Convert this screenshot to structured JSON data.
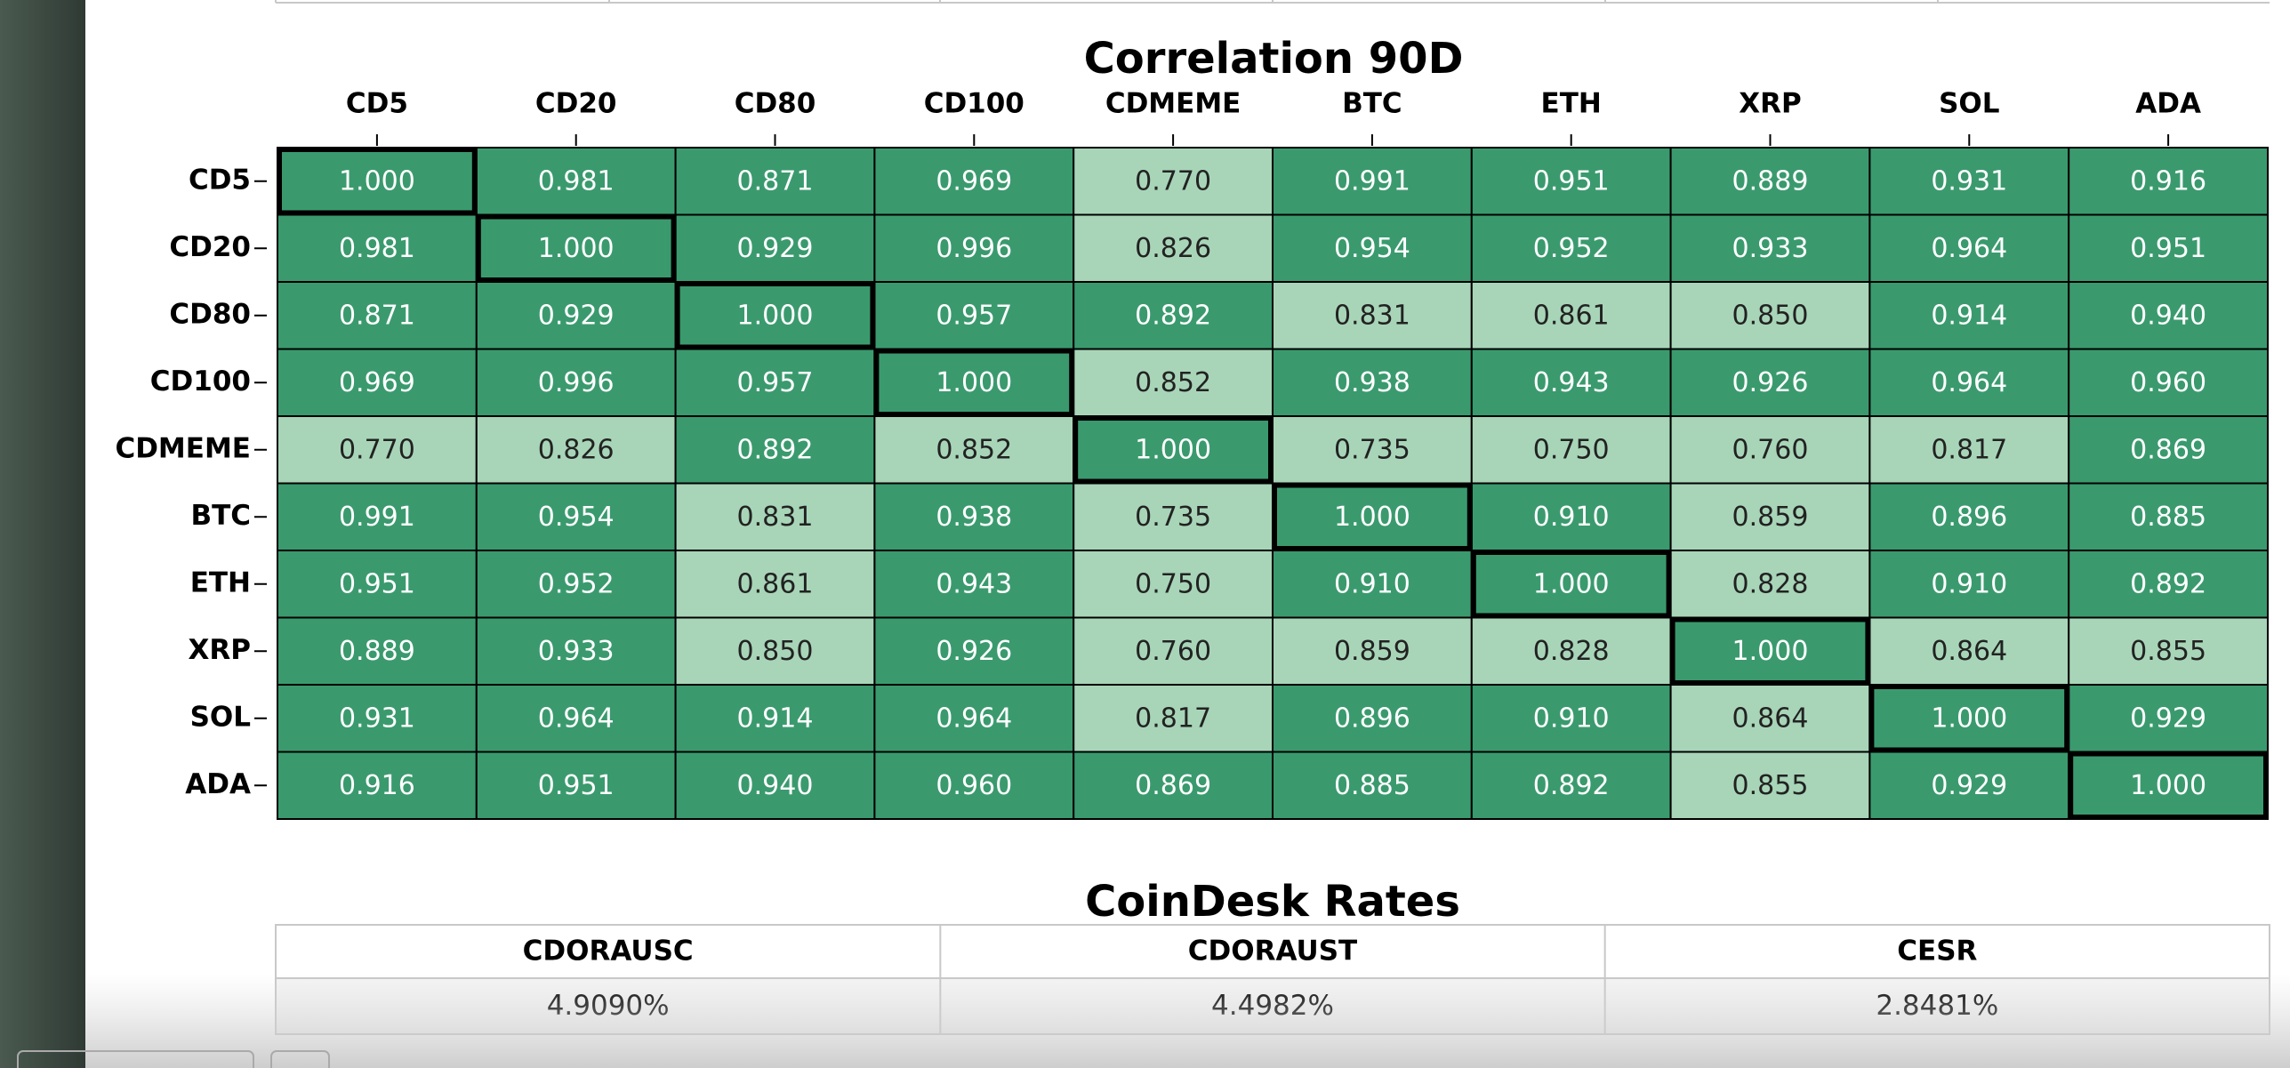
{
  "chart_data": {
    "type": "heatmap",
    "title": "Correlation 90D",
    "categories": [
      "CD5",
      "CD20",
      "CD80",
      "CD100",
      "CDMEME",
      "BTC",
      "ETH",
      "XRP",
      "SOL",
      "ADA"
    ],
    "values": [
      [
        1.0,
        0.981,
        0.871,
        0.969,
        0.77,
        0.991,
        0.951,
        0.889,
        0.931,
        0.916
      ],
      [
        0.981,
        1.0,
        0.929,
        0.996,
        0.826,
        0.954,
        0.952,
        0.933,
        0.964,
        0.951
      ],
      [
        0.871,
        0.929,
        1.0,
        0.957,
        0.892,
        0.831,
        0.861,
        0.85,
        0.914,
        0.94
      ],
      [
        0.969,
        0.996,
        0.957,
        1.0,
        0.852,
        0.938,
        0.943,
        0.926,
        0.964,
        0.96
      ],
      [
        0.77,
        0.826,
        0.892,
        0.852,
        1.0,
        0.735,
        0.75,
        0.76,
        0.817,
        0.869
      ],
      [
        0.991,
        0.954,
        0.831,
        0.938,
        0.735,
        1.0,
        0.91,
        0.859,
        0.896,
        0.885
      ],
      [
        0.951,
        0.952,
        0.861,
        0.943,
        0.75,
        0.91,
        1.0,
        0.828,
        0.91,
        0.892
      ],
      [
        0.889,
        0.933,
        0.85,
        0.926,
        0.76,
        0.859,
        0.828,
        1.0,
        0.864,
        0.855
      ],
      [
        0.931,
        0.964,
        0.914,
        0.964,
        0.817,
        0.896,
        0.91,
        0.864,
        1.0,
        0.929
      ],
      [
        0.916,
        0.951,
        0.94,
        0.96,
        0.869,
        0.885,
        0.892,
        0.855,
        0.929,
        1.0
      ]
    ],
    "value_labels": [
      [
        "1.000",
        "0.981",
        "0.871",
        "0.969",
        "0.770",
        "0.991",
        "0.951",
        "0.889",
        "0.931",
        "0.916"
      ],
      [
        "0.981",
        "1.000",
        "0.929",
        "0.996",
        "0.826",
        "0.954",
        "0.952",
        "0.933",
        "0.964",
        "0.951"
      ],
      [
        "0.871",
        "0.929",
        "1.000",
        "0.957",
        "0.892",
        "0.831",
        "0.861",
        "0.850",
        "0.914",
        "0.940"
      ],
      [
        "0.969",
        "0.996",
        "0.957",
        "1.000",
        "0.852",
        "0.938",
        "0.943",
        "0.926",
        "0.964",
        "0.960"
      ],
      [
        "0.770",
        "0.826",
        "0.892",
        "0.852",
        "1.000",
        "0.735",
        "0.750",
        "0.760",
        "0.817",
        "0.869"
      ],
      [
        "0.991",
        "0.954",
        "0.831",
        "0.938",
        "0.735",
        "1.000",
        "0.910",
        "0.859",
        "0.896",
        "0.885"
      ],
      [
        "0.951",
        "0.952",
        "0.861",
        "0.943",
        "0.750",
        "0.910",
        "1.000",
        "0.828",
        "0.910",
        "0.892"
      ],
      [
        "0.889",
        "0.933",
        "0.850",
        "0.926",
        "0.760",
        "0.859",
        "0.828",
        "1.000",
        "0.864",
        "0.855"
      ],
      [
        "0.931",
        "0.964",
        "0.914",
        "0.964",
        "0.817",
        "0.896",
        "0.910",
        "0.864",
        "1.000",
        "0.929"
      ],
      [
        "0.916",
        "0.951",
        "0.940",
        "0.960",
        "0.869",
        "0.885",
        "0.892",
        "0.855",
        "0.929",
        "1.000"
      ]
    ],
    "color_high": "#3a9a6e",
    "color_low": "#a8d5b8",
    "color_threshold": 0.865,
    "highlight_diagonal": true
  },
  "rates": {
    "title": "CoinDesk Rates",
    "headers": [
      "CDORAUSC",
      "CDORAUST",
      "CESR"
    ],
    "values": [
      "4.9090%",
      "4.4982%",
      "2.8481%"
    ]
  }
}
